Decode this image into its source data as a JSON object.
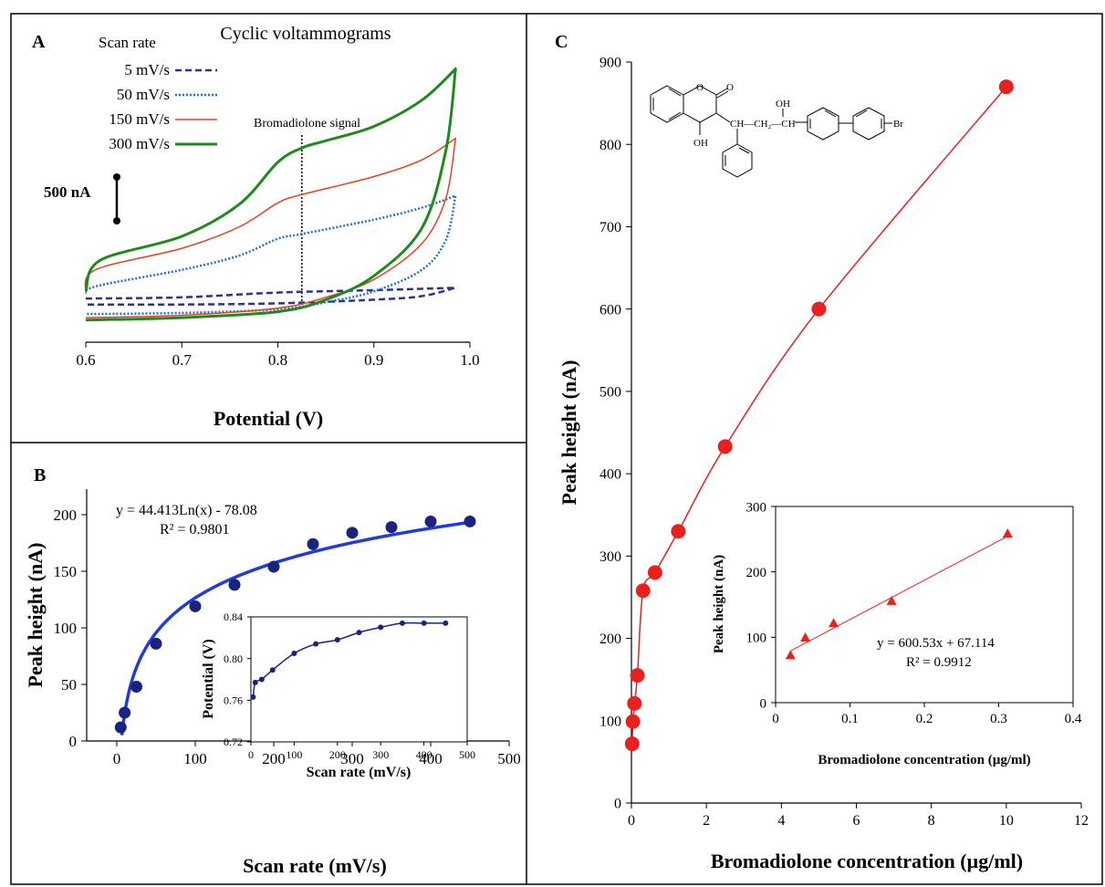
{
  "figure": {
    "panels": [
      "A",
      "B",
      "C"
    ]
  },
  "chart_data": [
    {
      "panel": "A",
      "type": "line",
      "title": "Cyclic voltammograms",
      "xlabel": "Potential (V)",
      "ylabel": "",
      "xlim": [
        0.6,
        1.0
      ],
      "x_ticks": [
        "0.6",
        "0.7",
        "0.8",
        "0.9",
        "1.0"
      ],
      "legend_title": "Scan rate",
      "legend_position": "top-left",
      "scale_bar_label": "500 nA",
      "annotation": "Bromadiolone signal",
      "annotation_x": 0.825,
      "series": [
        {
          "name": "5 mV/s",
          "color": "#2e3192",
          "dash": "dashed",
          "forward": [
            [
              0.6,
              0.06
            ],
            [
              0.7,
              0.07
            ],
            [
              0.8,
              0.11
            ],
            [
              0.9,
              0.13
            ],
            [
              0.985,
              0.15
            ]
          ],
          "reverse": [
            [
              0.985,
              0.15
            ],
            [
              0.95,
              0.08
            ],
            [
              0.9,
              0.05
            ],
            [
              0.8,
              0.02
            ],
            [
              0.7,
              0.01
            ],
            [
              0.6,
              0.01
            ]
          ]
        },
        {
          "name": "50 mV/s",
          "color": "#1f6fd6",
          "dash": "dotted",
          "forward": [
            [
              0.6,
              0.13
            ],
            [
              0.62,
              0.18
            ],
            [
              0.7,
              0.3
            ],
            [
              0.76,
              0.42
            ],
            [
              0.8,
              0.56
            ],
            [
              0.825,
              0.6
            ],
            [
              0.9,
              0.72
            ],
            [
              0.95,
              0.82
            ],
            [
              0.985,
              0.92
            ]
          ],
          "reverse": [
            [
              0.985,
              0.92
            ],
            [
              0.975,
              0.55
            ],
            [
              0.95,
              0.3
            ],
            [
              0.9,
              0.12
            ],
            [
              0.85,
              0.03
            ],
            [
              0.8,
              -0.03
            ],
            [
              0.7,
              -0.06
            ],
            [
              0.6,
              -0.07
            ]
          ]
        },
        {
          "name": "150 mV/s",
          "color": "#e8401e",
          "dash": "solid",
          "forward": [
            [
              0.6,
              0.1
            ],
            [
              0.61,
              0.3
            ],
            [
              0.7,
              0.48
            ],
            [
              0.76,
              0.66
            ],
            [
              0.8,
              0.86
            ],
            [
              0.825,
              0.93
            ],
            [
              0.9,
              1.08
            ],
            [
              0.95,
              1.22
            ],
            [
              0.985,
              1.4
            ]
          ],
          "reverse": [
            [
              0.985,
              1.4
            ],
            [
              0.975,
              0.9
            ],
            [
              0.95,
              0.52
            ],
            [
              0.9,
              0.22
            ],
            [
              0.85,
              0.07
            ],
            [
              0.8,
              -0.02
            ],
            [
              0.7,
              -0.08
            ],
            [
              0.6,
              -0.1
            ]
          ]
        },
        {
          "name": "300 mV/s",
          "color": "#1e8a1e",
          "dash": "solid",
          "forward": [
            [
              0.6,
              0.12
            ],
            [
              0.615,
              0.38
            ],
            [
              0.7,
              0.58
            ],
            [
              0.76,
              0.85
            ],
            [
              0.8,
              1.2
            ],
            [
              0.825,
              1.32
            ],
            [
              0.85,
              1.38
            ],
            [
              0.9,
              1.5
            ],
            [
              0.95,
              1.72
            ],
            [
              0.985,
              1.98
            ]
          ],
          "reverse": [
            [
              0.985,
              1.98
            ],
            [
              0.975,
              1.3
            ],
            [
              0.95,
              0.65
            ],
            [
              0.9,
              0.25
            ],
            [
              0.85,
              0.05
            ],
            [
              0.8,
              -0.05
            ],
            [
              0.7,
              -0.1
            ],
            [
              0.6,
              -0.12
            ]
          ]
        }
      ]
    },
    {
      "panel": "B",
      "type": "scatter",
      "xlabel": "Scan rate (mV/s)",
      "ylabel": "Peak height (nA)",
      "xlim": [
        0,
        500
      ],
      "ylim": [
        0,
        220
      ],
      "x_ticks": [
        "0",
        "100",
        "200",
        "300",
        "400",
        "500"
      ],
      "y_ticks": [
        "0",
        "50",
        "100",
        "150",
        "200"
      ],
      "equation": "y = 44.413Ln(x) - 78.08",
      "r2": "R² = 0.9801",
      "points": [
        [
          5,
          12
        ],
        [
          10,
          25
        ],
        [
          25,
          48
        ],
        [
          50,
          86
        ],
        [
          100,
          119
        ],
        [
          150,
          138
        ],
        [
          200,
          154
        ],
        [
          250,
          174
        ],
        [
          300,
          184
        ],
        [
          350,
          189
        ],
        [
          400,
          194
        ],
        [
          450,
          194
        ]
      ],
      "fit": {
        "type": "log",
        "a": 44.413,
        "b": -78.08,
        "x_range": [
          6.5,
          450
        ]
      },
      "marker_color": "#1a237e",
      "line_color": "#1f3be0",
      "inset": {
        "type": "line",
        "xlabel": "Scan rate (mV/s)",
        "ylabel": "Potential (V)",
        "xlim": [
          0,
          500
        ],
        "ylim": [
          0.72,
          0.84
        ],
        "x_ticks": [
          "0",
          "100",
          "200",
          "300",
          "400",
          "500"
        ],
        "y_ticks": [
          "0.72",
          "0.76",
          "0.80",
          "0.84"
        ],
        "points": [
          [
            5,
            0.763
          ],
          [
            10,
            0.777
          ],
          [
            25,
            0.78
          ],
          [
            50,
            0.789
          ],
          [
            100,
            0.805
          ],
          [
            150,
            0.814
          ],
          [
            200,
            0.818
          ],
          [
            250,
            0.825
          ],
          [
            300,
            0.83
          ],
          [
            350,
            0.834
          ],
          [
            400,
            0.834
          ],
          [
            450,
            0.834
          ]
        ],
        "color": "#1a237e"
      }
    },
    {
      "panel": "C",
      "type": "line",
      "xlabel": "Bromadiolone concentration (µg/ml)",
      "ylabel": "Peak height (nA)",
      "xlim": [
        0,
        12
      ],
      "ylim": [
        0,
        900
      ],
      "x_ticks": [
        "0",
        "2",
        "4",
        "6",
        "8",
        "10",
        "12"
      ],
      "y_ticks": [
        "0",
        "100",
        "200",
        "300",
        "400",
        "500",
        "600",
        "700",
        "800",
        "900"
      ],
      "points": [
        [
          0.02,
          72
        ],
        [
          0.04,
          99
        ],
        [
          0.08,
          121
        ],
        [
          0.16,
          155
        ],
        [
          0.31,
          258
        ],
        [
          0.63,
          280
        ],
        [
          1.25,
          330
        ],
        [
          2.5,
          433
        ],
        [
          5,
          600
        ],
        [
          10,
          870
        ]
      ],
      "color": "#e8201e",
      "molecule_labels": {
        "o1": "O",
        "o2": "O",
        "oh1": "OH",
        "oh2": "OH",
        "br": "Br",
        "chain": "CH—CH₂—CH"
      },
      "inset": {
        "type": "scatter",
        "xlabel": "Bromadiolone concentration (µg/ml)",
        "ylabel": "Peak height (nA)",
        "xlim": [
          0,
          0.4
        ],
        "ylim": [
          0,
          300
        ],
        "x_ticks": [
          "0",
          "0.1",
          "0.2",
          "0.3",
          "0.4"
        ],
        "y_ticks": [
          "0",
          "100",
          "200",
          "300"
        ],
        "points": [
          [
            0.02,
            72
          ],
          [
            0.04,
            99
          ],
          [
            0.078,
            121
          ],
          [
            0.156,
            155
          ],
          [
            0.312,
            258
          ]
        ],
        "fit": {
          "type": "linear",
          "a": 600.53,
          "b": 67.114,
          "x_range": [
            0.02,
            0.312
          ]
        },
        "equation": "y = 600.53x + 67.114",
        "r2": "R² = 0.9912",
        "color": "#e8201e"
      }
    }
  ]
}
